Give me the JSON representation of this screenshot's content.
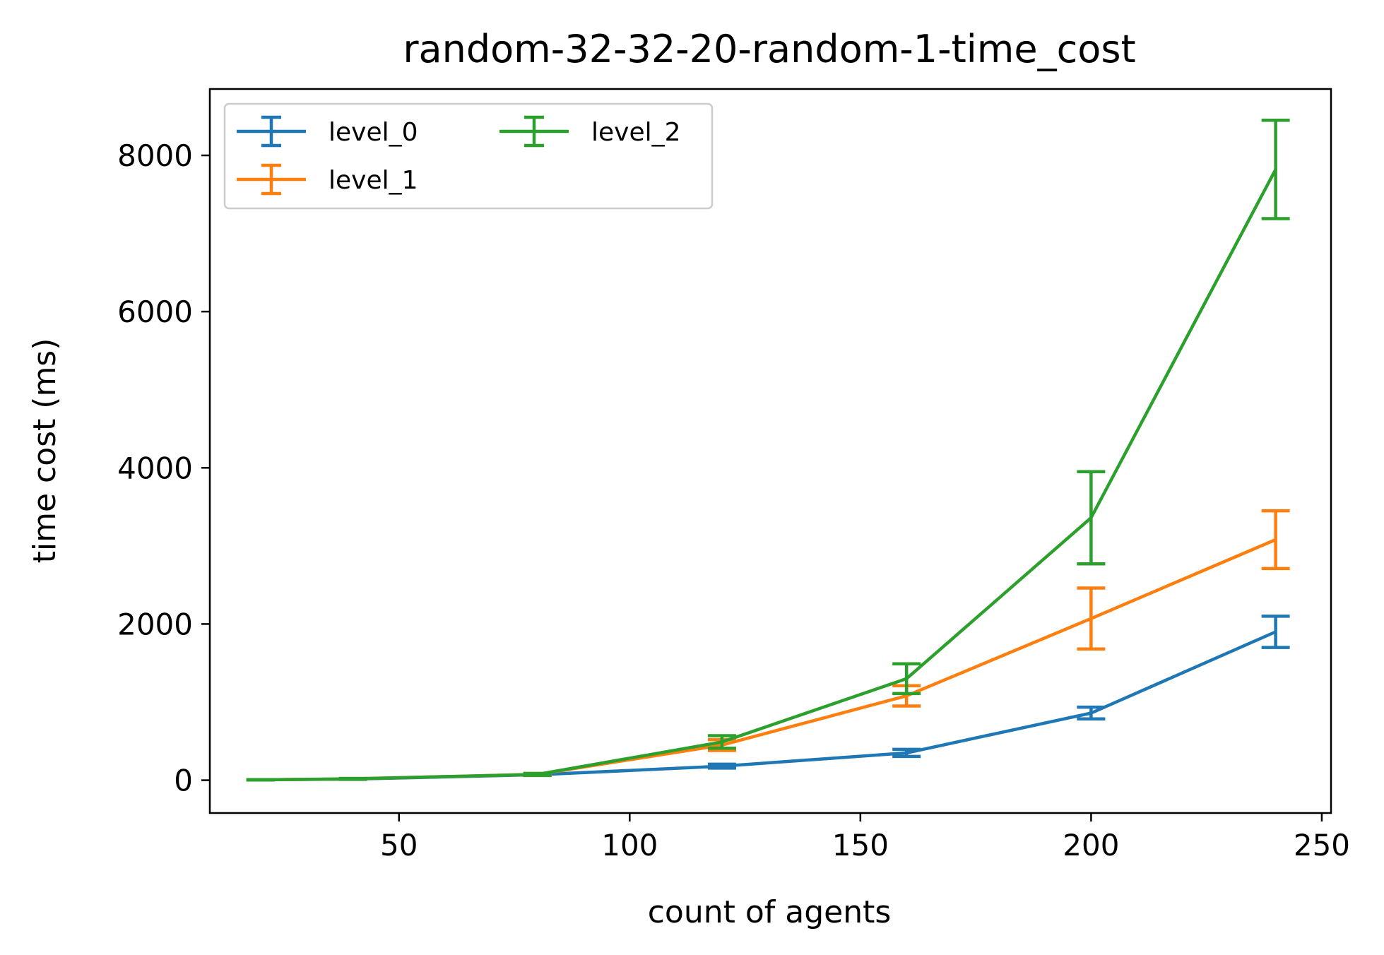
{
  "chart_data": {
    "type": "line",
    "title": "random-32-32-20-random-1-time_cost",
    "xlabel": "count of agents",
    "ylabel": "time cost (ms)",
    "xlim": [
      9,
      252
    ],
    "ylim": [
      -420,
      8850
    ],
    "xticks": [
      50,
      100,
      150,
      200,
      250
    ],
    "yticks": [
      0,
      2000,
      4000,
      6000,
      8000
    ],
    "grid": false,
    "legend_position": "top-left",
    "x": [
      20,
      40,
      80,
      120,
      160,
      200,
      240
    ],
    "series": [
      {
        "name": "level_0",
        "color": "#1f77b4",
        "values": [
          5,
          15,
          70,
          180,
          350,
          860,
          1900
        ],
        "errors": [
          2,
          4,
          10,
          25,
          45,
          75,
          200
        ]
      },
      {
        "name": "level_1",
        "color": "#ff7f0e",
        "values": [
          5,
          18,
          75,
          450,
          1080,
          2070,
          3080
        ],
        "errors": [
          2,
          4,
          12,
          70,
          130,
          390,
          370
        ]
      },
      {
        "name": "level_2",
        "color": "#2ca02c",
        "values": [
          5,
          18,
          75,
          490,
          1300,
          3360,
          7820
        ],
        "errors": [
          2,
          4,
          12,
          80,
          190,
          590,
          630
        ]
      }
    ]
  }
}
